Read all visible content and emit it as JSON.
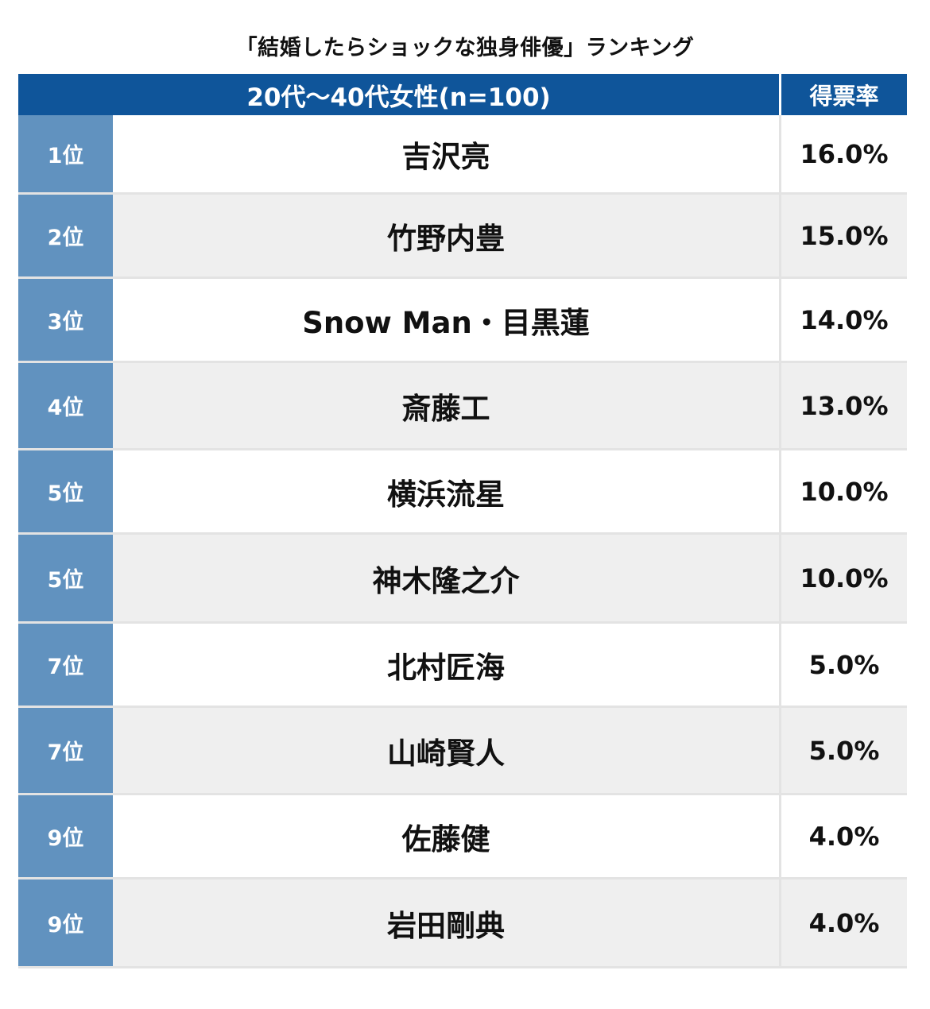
{
  "title": "「結婚したらショックな独身俳優」ランキング",
  "header": {
    "main": "20代〜40代女性(n=100)",
    "rate": "得票率"
  },
  "chart_data": {
    "type": "table",
    "title": "「結婚したらショックな独身俳優」ランキング",
    "columns": [
      "20代〜40代女性(n=100)",
      "得票率"
    ],
    "rows": [
      {
        "rank": "1位",
        "name": "吉沢亮",
        "rate": "16.0%"
      },
      {
        "rank": "2位",
        "name": "竹野内豊",
        "rate": "15.0%"
      },
      {
        "rank": "3位",
        "name": "Snow Man・目黒蓮",
        "rate": "14.0%"
      },
      {
        "rank": "4位",
        "name": "斎藤工",
        "rate": "13.0%"
      },
      {
        "rank": "5位",
        "name": "横浜流星",
        "rate": "10.0%"
      },
      {
        "rank": "5位",
        "name": "神木隆之介",
        "rate": "10.0%"
      },
      {
        "rank": "7位",
        "name": "北村匠海",
        "rate": "5.0%"
      },
      {
        "rank": "7位",
        "name": "山崎賢人",
        "rate": "5.0%"
      },
      {
        "rank": "9位",
        "name": "佐藤健",
        "rate": "4.0%"
      },
      {
        "rank": "9位",
        "name": "岩田剛典",
        "rate": "4.0%"
      }
    ]
  },
  "colors": {
    "header_bg": "#0f559a",
    "rank_bg": "#6192bf",
    "alt_row_bg": "#efefef"
  }
}
